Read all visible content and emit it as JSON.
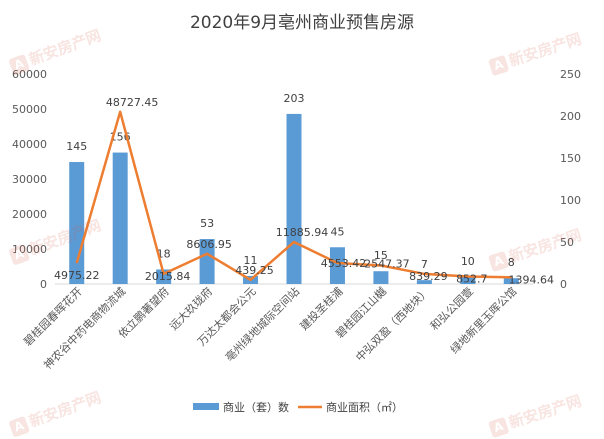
{
  "chart_data": {
    "type": "bar",
    "title": "2020年9月亳州商业预售房源",
    "categories": [
      "碧桂园春晖花开",
      "神农谷中药电商物流城",
      "依立鹏著望府",
      "远大玖珑府",
      "万达太都会公元",
      "亳州绿地城际空间站",
      "建投圣桂浦",
      "碧桂园江山樾",
      "中弘双盈（西地块）",
      "和弘公园壹",
      "绿地新里玉晖公馆"
    ],
    "series": [
      {
        "name": "商业（套）数",
        "axis": "left",
        "type": "bar",
        "color": "#5b9bd5",
        "values": [
          34850,
          37550,
          4150,
          12850,
          2300,
          48600,
          10500,
          3650,
          1100,
          2000,
          1650
        ],
        "labels": [
          "145",
          "156",
          "18",
          "53",
          "11",
          "203",
          "45",
          "15",
          "7",
          "10",
          "8"
        ]
      },
      {
        "name": "商业面积（㎡）",
        "axis": "right",
        "type": "line",
        "color": "#ed7d31",
        "values": [
          25,
          205,
          12,
          36,
          5,
          50,
          25,
          22,
          12,
          9,
          8
        ],
        "labels": [
          "4975.22",
          "48727.45",
          "2015.84",
          "8606.95",
          "439.25",
          "11885.94",
          "4553.42",
          "2547.37",
          "839.29",
          "852.7",
          "1394.64"
        ]
      }
    ],
    "y_left": {
      "min": 0,
      "max": 60000,
      "ticks": [
        0,
        10000,
        20000,
        30000,
        40000,
        50000,
        60000
      ]
    },
    "y_right": {
      "min": 0,
      "max": 250,
      "ticks": [
        0,
        50,
        100,
        150,
        200,
        250
      ]
    },
    "grid": false,
    "legend_position": "bottom"
  },
  "watermarks": [
    "新安房产网",
    "新安房产网",
    "新安房产网",
    "新安房产网",
    "新安房产网",
    "新安房产网"
  ]
}
